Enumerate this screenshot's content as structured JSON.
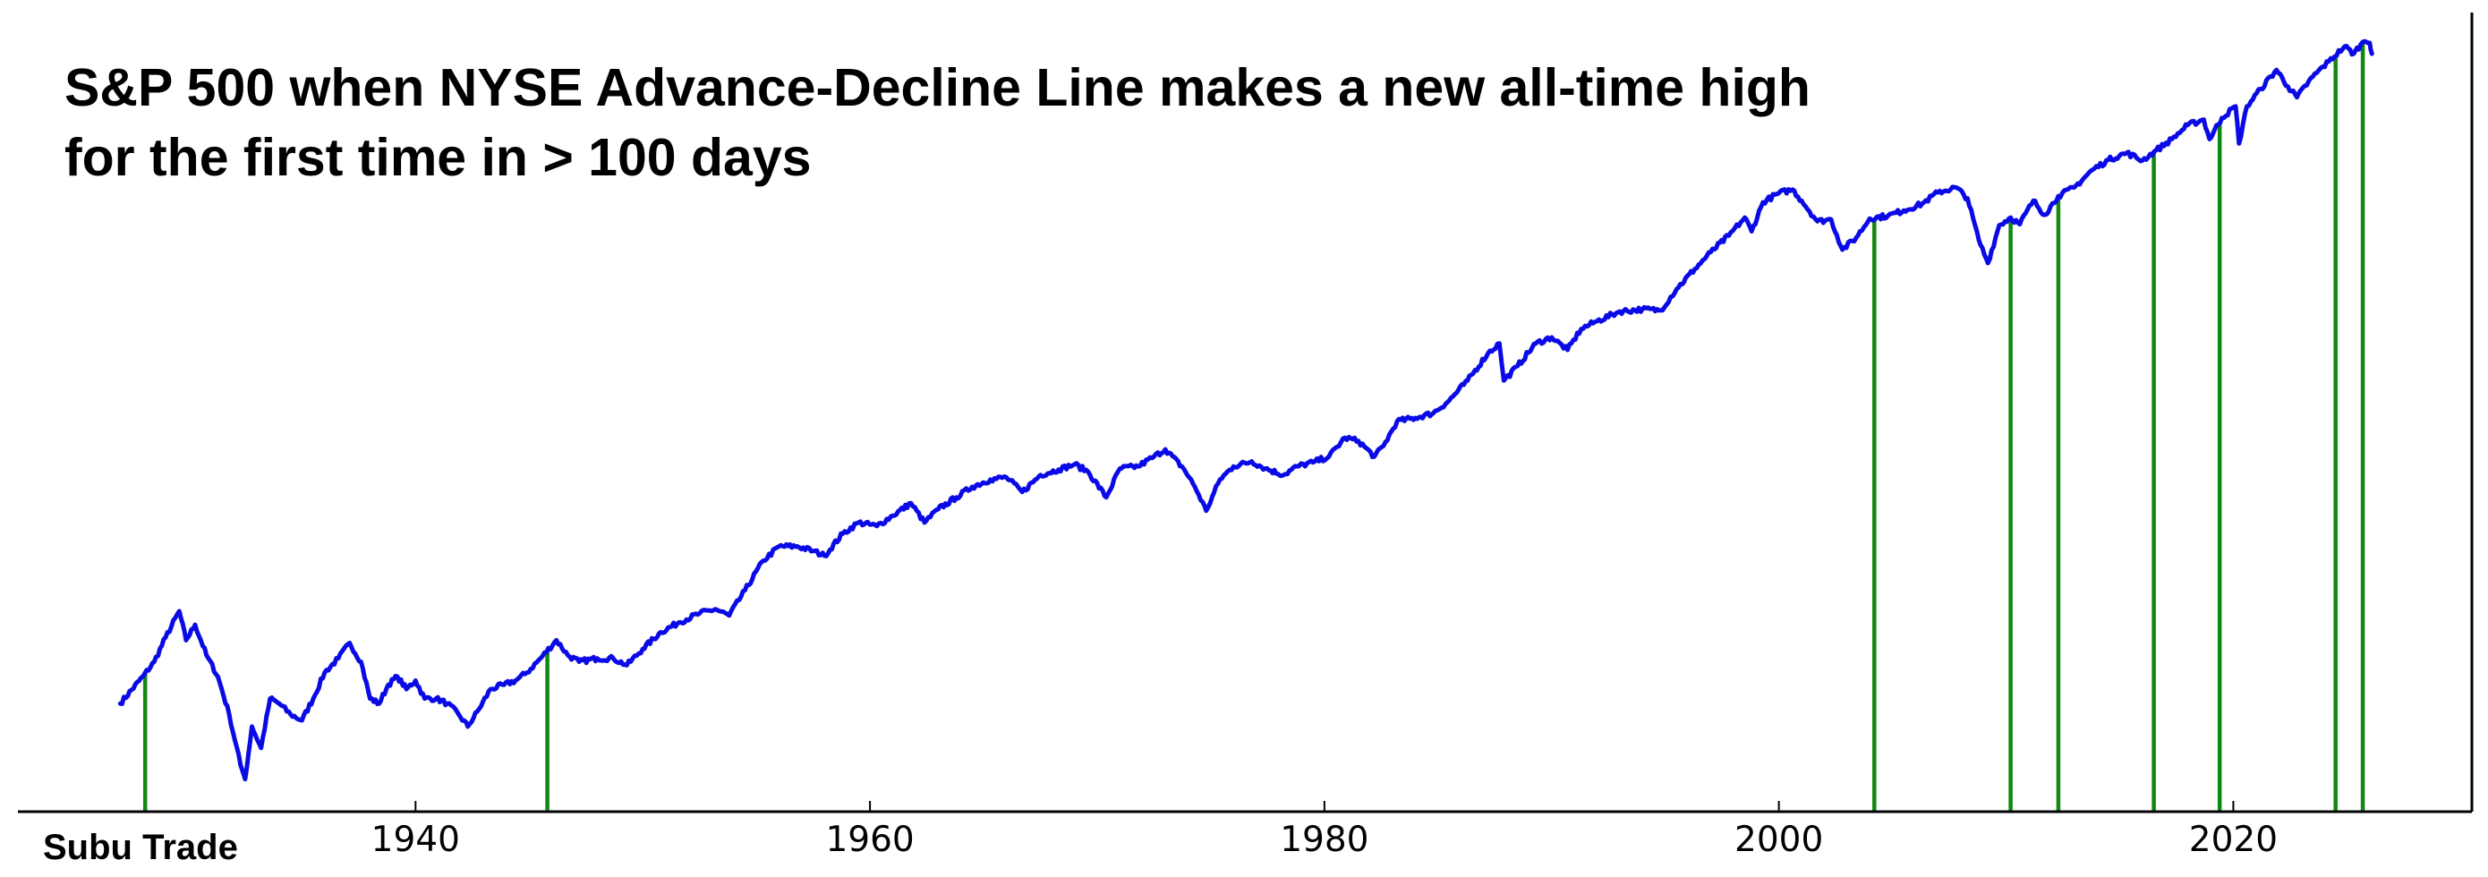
{
  "chart_data": {
    "type": "line",
    "title_lines": [
      "S&P 500 when NYSE Advance-Decline Line makes a new all-time high",
      "for the first time in > 100 days"
    ],
    "xlabel": "",
    "ylabel": "",
    "y_scale": "log",
    "xlim": [
      1922.5,
      2030.5
    ],
    "ylim": [
      3.5,
      8200
    ],
    "x_ticks": [
      "1940",
      "1960",
      "1980",
      "2000",
      "2020"
    ],
    "grid": false,
    "series": [
      {
        "color": "#0a0ae6",
        "points": [
          [
            1927.0,
            10.0
          ],
          [
            1928.0,
            13.0
          ],
          [
            1928.5,
            15.0
          ],
          [
            1929.0,
            19.0
          ],
          [
            1929.6,
            24.5
          ],
          [
            1929.9,
            18.5
          ],
          [
            1930.3,
            21.5
          ],
          [
            1930.8,
            16.0
          ],
          [
            1931.3,
            13.0
          ],
          [
            1931.8,
            9.0
          ],
          [
            1932.3,
            5.5
          ],
          [
            1932.5,
            4.8
          ],
          [
            1932.8,
            8.0
          ],
          [
            1933.2,
            6.5
          ],
          [
            1933.6,
            10.5
          ],
          [
            1934.0,
            10.0
          ],
          [
            1934.5,
            9.0
          ],
          [
            1935.0,
            8.5
          ],
          [
            1935.5,
            10.5
          ],
          [
            1936.0,
            13.5
          ],
          [
            1936.6,
            15.5
          ],
          [
            1937.1,
            18.0
          ],
          [
            1937.6,
            15.0
          ],
          [
            1938.0,
            10.5
          ],
          [
            1938.4,
            10.0
          ],
          [
            1938.8,
            12.0
          ],
          [
            1939.2,
            13.0
          ],
          [
            1939.6,
            11.5
          ],
          [
            1940.0,
            12.5
          ],
          [
            1940.4,
            10.5
          ],
          [
            1940.9,
            10.5
          ],
          [
            1941.4,
            10.0
          ],
          [
            1941.9,
            9.0
          ],
          [
            1942.3,
            8.0
          ],
          [
            1942.8,
            9.5
          ],
          [
            1943.3,
            11.5
          ],
          [
            1943.9,
            12.0
          ],
          [
            1944.4,
            12.5
          ],
          [
            1944.9,
            13.5
          ],
          [
            1945.5,
            15.5
          ],
          [
            1946.2,
            18.5
          ],
          [
            1946.7,
            16.0
          ],
          [
            1947.2,
            15.0
          ],
          [
            1948.0,
            15.5
          ],
          [
            1948.7,
            15.5
          ],
          [
            1949.3,
            14.5
          ],
          [
            1950.0,
            17.0
          ],
          [
            1950.8,
            20.0
          ],
          [
            1951.6,
            22.0
          ],
          [
            1952.5,
            24.0
          ],
          [
            1953.2,
            25.0
          ],
          [
            1953.8,
            23.5
          ],
          [
            1954.5,
            30.0
          ],
          [
            1955.3,
            40.0
          ],
          [
            1956.0,
            46.0
          ],
          [
            1956.8,
            46.0
          ],
          [
            1957.5,
            44.0
          ],
          [
            1958.0,
            42.0
          ],
          [
            1958.8,
            52.0
          ],
          [
            1959.5,
            58.0
          ],
          [
            1960.3,
            56.0
          ],
          [
            1961.0,
            62.0
          ],
          [
            1961.8,
            70.0
          ],
          [
            1962.4,
            58.0
          ],
          [
            1963.0,
            66.0
          ],
          [
            1963.8,
            74.0
          ],
          [
            1964.5,
            82.0
          ],
          [
            1965.3,
            88.0
          ],
          [
            1966.0,
            90.0
          ],
          [
            1966.7,
            78.0
          ],
          [
            1967.5,
            92.0
          ],
          [
            1968.3,
            97.0
          ],
          [
            1969.0,
            102.0
          ],
          [
            1969.6,
            95.0
          ],
          [
            1970.4,
            74.0
          ],
          [
            1971.0,
            98.0
          ],
          [
            1971.8,
            100.0
          ],
          [
            1972.5,
            110.0
          ],
          [
            1973.0,
            118.0
          ],
          [
            1973.8,
            98.0
          ],
          [
            1974.3,
            82.0
          ],
          [
            1974.8,
            65.0
          ],
          [
            1975.4,
            88.0
          ],
          [
            1976.0,
            100.0
          ],
          [
            1976.8,
            105.0
          ],
          [
            1977.4,
            98.0
          ],
          [
            1978.2,
            92.0
          ],
          [
            1978.8,
            100.0
          ],
          [
            1979.5,
            104.0
          ],
          [
            1980.2,
            110.0
          ],
          [
            1980.9,
            132.0
          ],
          [
            1981.5,
            128.0
          ],
          [
            1982.2,
            110.0
          ],
          [
            1982.6,
            122.0
          ],
          [
            1983.2,
            155.0
          ],
          [
            1984.0,
            160.0
          ],
          [
            1984.8,
            168.0
          ],
          [
            1985.5,
            190.0
          ],
          [
            1986.3,
            230.0
          ],
          [
            1987.2,
            300.0
          ],
          [
            1987.7,
            330.0
          ],
          [
            1987.9,
            230.0
          ],
          [
            1988.5,
            265.0
          ],
          [
            1989.3,
            330.0
          ],
          [
            1990.0,
            350.0
          ],
          [
            1990.7,
            310.0
          ],
          [
            1991.3,
            380.0
          ],
          [
            1992.0,
            410.0
          ],
          [
            1993.0,
            450.0
          ],
          [
            1994.0,
            460.0
          ],
          [
            1994.8,
            455.0
          ],
          [
            1995.5,
            560.0
          ],
          [
            1996.3,
            680.0
          ],
          [
            1997.0,
            800.0
          ],
          [
            1997.8,
            940.0
          ],
          [
            1998.5,
            1120.0
          ],
          [
            1998.8,
            980.0
          ],
          [
            1999.3,
            1300.0
          ],
          [
            2000.0,
            1420.0
          ],
          [
            2000.6,
            1470.0
          ],
          [
            2001.0,
            1320.0
          ],
          [
            2001.7,
            1080.0
          ],
          [
            2002.3,
            1100.0
          ],
          [
            2002.8,
            820.0
          ],
          [
            2003.4,
            920.0
          ],
          [
            2004.0,
            1110.0
          ],
          [
            2004.8,
            1140.0
          ],
          [
            2005.5,
            1200.0
          ],
          [
            2006.3,
            1280.0
          ],
          [
            2007.0,
            1430.0
          ],
          [
            2007.8,
            1500.0
          ],
          [
            2008.3,
            1350.0
          ],
          [
            2008.8,
            900.0
          ],
          [
            2009.2,
            720.0
          ],
          [
            2009.7,
            1040.0
          ],
          [
            2010.2,
            1120.0
          ],
          [
            2010.6,
            1050.0
          ],
          [
            2011.2,
            1320.0
          ],
          [
            2011.7,
            1150.0
          ],
          [
            2012.3,
            1380.0
          ],
          [
            2013.0,
            1500.0
          ],
          [
            2013.8,
            1780.0
          ],
          [
            2014.5,
            1960.0
          ],
          [
            2015.3,
            2100.0
          ],
          [
            2016.0,
            1950.0
          ],
          [
            2016.6,
            2150.0
          ],
          [
            2017.3,
            2400.0
          ],
          [
            2018.0,
            2750.0
          ],
          [
            2018.7,
            2900.0
          ],
          [
            2018.95,
            2400.0
          ],
          [
            2019.5,
            2950.0
          ],
          [
            2020.1,
            3300.0
          ],
          [
            2020.25,
            2300.0
          ],
          [
            2020.6,
            3300.0
          ],
          [
            2021.2,
            3900.0
          ],
          [
            2021.9,
            4700.0
          ],
          [
            2022.4,
            4000.0
          ],
          [
            2022.8,
            3600.0
          ],
          [
            2023.5,
            4400.0
          ],
          [
            2024.2,
            5100.0
          ],
          [
            2024.9,
            5900.0
          ],
          [
            2025.3,
            5500.0
          ],
          [
            2025.6,
            6000.0
          ],
          [
            2025.8,
            6200.0
          ],
          [
            2026.0,
            6100.0
          ],
          [
            2026.1,
            5500.0
          ]
        ]
      }
    ],
    "signals": {
      "color": "#118811",
      "dates": [
        1928.1,
        1945.8,
        2004.2,
        2010.2,
        2012.3,
        2016.5,
        2019.4,
        2024.5,
        2025.7
      ]
    }
  },
  "watermark": "Subu Trade",
  "colors": {
    "line": "#0a0ae6",
    "signal": "#118811",
    "axis": "#000000",
    "background": "#ffffff"
  }
}
